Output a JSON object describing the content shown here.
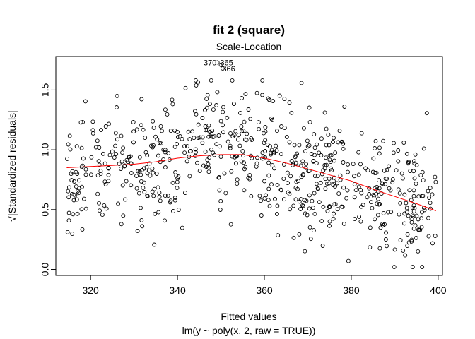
{
  "chart_data": {
    "type": "scatter",
    "title": "fit 2 (square)",
    "subtitle": "Scale-Location",
    "xlabel": "Fitted values",
    "xsublabel": "lm(y ~ poly(x, 2, raw = TRUE))",
    "ylabel": "√|Standardized residuals|",
    "xlim": [
      312,
      401
    ],
    "ylim": [
      -0.05,
      1.78
    ],
    "xticks": [
      320,
      340,
      360,
      380,
      400
    ],
    "yticks": [
      0.0,
      0.5,
      1.0,
      1.5
    ],
    "xtick_labels": [
      "320",
      "340",
      "360",
      "380",
      "400"
    ],
    "ytick_labels": [
      "0.0",
      "0.5",
      "1.0",
      "1.5"
    ],
    "point_outline_color": "#000000",
    "smooth_color": "#ff0000",
    "grid": false,
    "smooth_line": {
      "x": [
        314.5,
        320,
        325,
        330,
        335,
        340,
        345,
        350,
        355,
        360,
        365,
        370,
        375,
        380,
        385,
        390,
        395,
        399.5
      ],
      "y": [
        0.85,
        0.86,
        0.87,
        0.88,
        0.9,
        0.93,
        0.95,
        0.96,
        0.96,
        0.93,
        0.89,
        0.84,
        0.79,
        0.74,
        0.67,
        0.61,
        0.55,
        0.49
      ]
    },
    "annotations": [
      {
        "text": "370",
        "x": 347.5,
        "y": 1.73
      },
      {
        "text": "365",
        "x": 351.3,
        "y": 1.73
      },
      {
        "text": "366",
        "x": 351.8,
        "y": 1.68
      }
    ],
    "highlighted_points": [
      {
        "x": 349.2,
        "y": 1.73
      },
      {
        "x": 350.0,
        "y": 1.71
      },
      {
        "x": 350.4,
        "y": 1.68
      }
    ],
    "point_generation": {
      "count": 700,
      "note": "remaining scatter points approximated from the visual density"
    }
  }
}
